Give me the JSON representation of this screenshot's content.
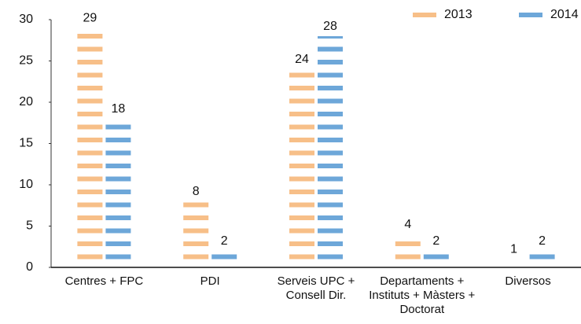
{
  "chart_data": {
    "type": "bar",
    "categories": [
      "Centres + FPC",
      "PDI",
      "Serveis UPC + Consell Dir.",
      "Departaments + Instituts + Màsters + Doctorat",
      "Diversos"
    ],
    "series": [
      {
        "name": "2013",
        "color": "#f7bf88",
        "values": [
          29,
          8,
          24,
          4,
          1
        ]
      },
      {
        "name": "2014",
        "color": "#6da7d9",
        "values": [
          18,
          2,
          28,
          2,
          2
        ]
      }
    ],
    "ylim": [
      0,
      30
    ],
    "yticks": [
      0,
      5,
      10,
      15,
      20,
      25,
      30
    ],
    "grid": false,
    "legend": "top-right"
  }
}
